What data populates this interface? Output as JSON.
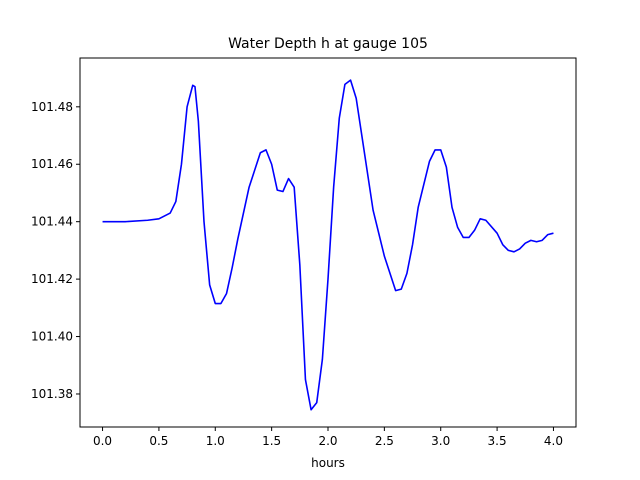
{
  "chart_data": {
    "type": "line",
    "title": "Water Depth h at gauge 105",
    "xlabel": "hours",
    "ylabel": "",
    "xlim": [
      -0.2,
      4.2
    ],
    "ylim": [
      101.3685,
      101.497
    ],
    "grid": false,
    "xticks": [
      0.0,
      0.5,
      1.0,
      1.5,
      2.0,
      2.5,
      3.0,
      3.5,
      4.0
    ],
    "xtick_labels": [
      "0.0",
      "0.5",
      "1.0",
      "1.5",
      "2.0",
      "2.5",
      "3.0",
      "3.5",
      "4.0"
    ],
    "yticks": [
      101.38,
      101.4,
      101.42,
      101.44,
      101.46,
      101.48
    ],
    "ytick_labels": [
      "101.38",
      "101.40",
      "101.42",
      "101.44",
      "101.46",
      "101.48"
    ],
    "series": [
      {
        "color": "#0000ff",
        "x": [
          0.0,
          0.2,
          0.4,
          0.5,
          0.6,
          0.65,
          0.7,
          0.75,
          0.8,
          0.82,
          0.85,
          0.9,
          0.95,
          1.0,
          1.05,
          1.1,
          1.15,
          1.2,
          1.3,
          1.4,
          1.45,
          1.5,
          1.55,
          1.6,
          1.65,
          1.7,
          1.75,
          1.8,
          1.85,
          1.9,
          1.95,
          2.0,
          2.05,
          2.1,
          2.15,
          2.2,
          2.25,
          2.3,
          2.4,
          2.5,
          2.6,
          2.65,
          2.7,
          2.75,
          2.8,
          2.9,
          2.95,
          3.0,
          3.05,
          3.1,
          3.15,
          3.2,
          3.25,
          3.3,
          3.35,
          3.4,
          3.5,
          3.55,
          3.6,
          3.65,
          3.7,
          3.75,
          3.8,
          3.85,
          3.9,
          3.95,
          4.0
        ],
        "y": [
          101.44,
          101.44,
          101.4405,
          101.441,
          101.443,
          101.447,
          101.46,
          101.48,
          101.4875,
          101.487,
          101.475,
          101.44,
          101.418,
          101.4115,
          101.4115,
          101.415,
          101.424,
          101.434,
          101.452,
          101.464,
          101.465,
          101.46,
          101.451,
          101.4505,
          101.455,
          101.452,
          101.425,
          101.385,
          101.3745,
          101.377,
          101.392,
          101.42,
          101.452,
          101.476,
          101.4878,
          101.4893,
          101.483,
          101.47,
          101.444,
          101.428,
          101.416,
          101.4165,
          101.422,
          101.432,
          101.445,
          101.461,
          101.465,
          101.465,
          101.459,
          101.445,
          101.438,
          101.4345,
          101.4345,
          101.437,
          101.441,
          101.4405,
          101.436,
          101.432,
          101.43,
          101.4295,
          101.4305,
          101.4325,
          101.4335,
          101.433,
          101.4335,
          101.4355,
          101.436
        ]
      }
    ]
  }
}
